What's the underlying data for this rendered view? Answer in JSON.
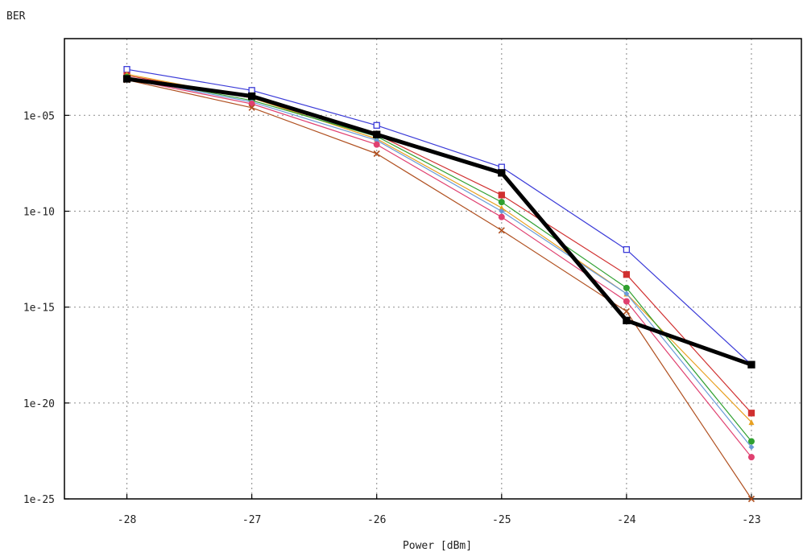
{
  "chart_data": {
    "type": "line",
    "title": "",
    "xlabel": "Power [dBm]",
    "ylabel": "BER",
    "yscale": "log",
    "xlim": [
      -28.5,
      -22.6
    ],
    "ylim": [
      1e-25,
      0.1
    ],
    "x_ticks": [
      -28,
      -27,
      -26,
      -25,
      -24,
      -23
    ],
    "x_tick_labels": [
      "-28",
      "-27",
      "-26",
      "-25",
      "-24",
      "-23"
    ],
    "y_ticks": [
      1e-25,
      1e-20,
      1e-15,
      1e-10,
      1e-05
    ],
    "y_tick_labels": [
      "1e-25",
      "1e-20",
      "1e-15",
      "1e-10",
      "1e-05"
    ],
    "grid": true,
    "legend": "none",
    "x": [
      -28,
      -27,
      -26,
      -25,
      -24,
      -23
    ],
    "series": [
      {
        "color": "#3a3ad8",
        "marker": "square-open",
        "width": 1.2,
        "values": [
          0.0025,
          0.0002,
          3e-06,
          2e-08,
          1e-12,
          1e-18
        ]
      },
      {
        "color": "#d03030",
        "marker": "square",
        "width": 1.2,
        "values": [
          0.0012,
          8e-05,
          1e-06,
          7e-10,
          5e-14,
          3e-21
        ]
      },
      {
        "color": "#e8a020",
        "marker": "triangle",
        "width": 1.2,
        "values": [
          0.0014,
          8e-05,
          6e-07,
          1.5e-10,
          5e-15,
          1e-21
        ]
      },
      {
        "color": "#30a030",
        "marker": "circle",
        "width": 1.2,
        "values": [
          0.001,
          6e-05,
          8e-07,
          3e-10,
          1e-14,
          1e-22
        ]
      },
      {
        "color": "#6a9ad8",
        "marker": "diamond",
        "width": 1.2,
        "values": [
          0.0009,
          5e-05,
          5e-07,
          1e-10,
          5e-15,
          5e-23
        ]
      },
      {
        "color": "#e04070",
        "marker": "circle",
        "width": 1.2,
        "values": [
          0.0008,
          4e-05,
          3e-07,
          5e-11,
          2e-15,
          1.5e-23
        ]
      },
      {
        "color": "#b05020",
        "marker": "x",
        "width": 1.2,
        "values": [
          0.0007,
          2.5e-05,
          1e-07,
          1e-11,
          6e-16,
          1e-25
        ]
      },
      {
        "color": "#000000",
        "marker": "square",
        "width": 5,
        "values": [
          0.0008,
          0.0001,
          1e-06,
          1e-08,
          2e-16,
          1e-18
        ]
      }
    ]
  }
}
